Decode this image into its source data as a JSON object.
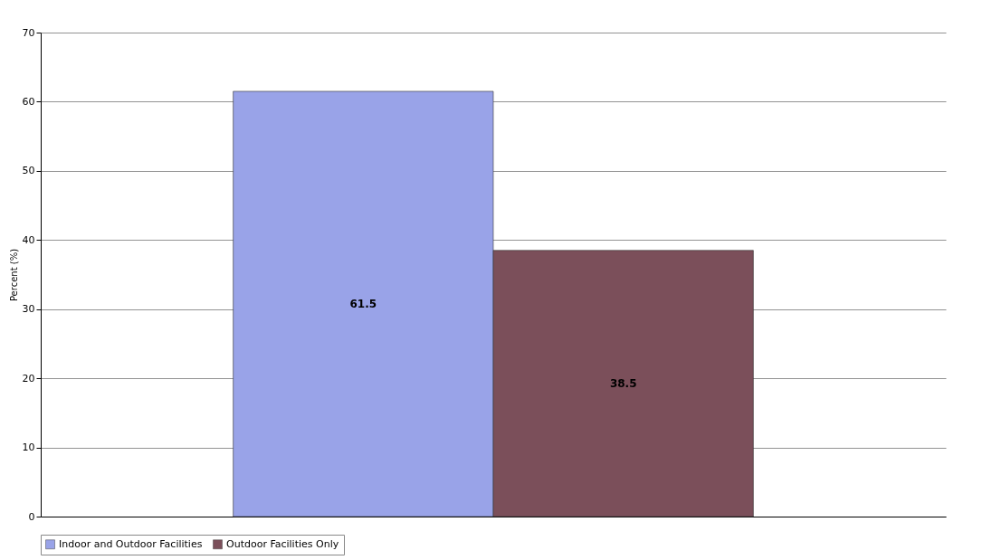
{
  "chart_data": {
    "type": "bar",
    "ylabel": "Percent (%)",
    "categories": [
      null
    ],
    "series": [
      {
        "name": "Indoor and Outdoor Facilities",
        "color": "#99a3e8",
        "values": [
          61.5
        ]
      },
      {
        "name": "Outdoor Facilities Only",
        "color": "#7b4f5a",
        "values": [
          38.5
        ]
      }
    ],
    "ylim": [
      0,
      70
    ],
    "yticks": [
      0,
      10,
      20,
      30,
      40,
      50,
      60,
      70
    ],
    "grid": "y",
    "legend": "bottom",
    "data_labels": true
  }
}
